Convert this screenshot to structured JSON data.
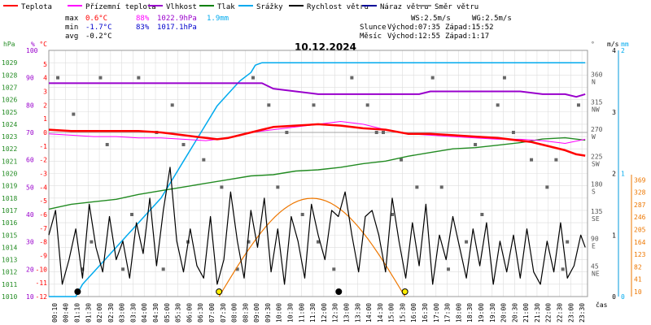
{
  "legend": [
    {
      "label": "Teplota",
      "color": "#ff0000"
    },
    {
      "label": "Přízemní teplota",
      "color": "#ff00ff"
    },
    {
      "label": "Vlhkost",
      "color": "#9900cc"
    },
    {
      "label": "Tlak",
      "color": "#008000"
    },
    {
      "label": "Srážky",
      "color": "#00aaee"
    },
    {
      "label": "Rychlost větru",
      "color": "#000000"
    },
    {
      "label": "Náraz větru",
      "color": "#000099"
    },
    {
      "label": "Směr větru",
      "color": "#888888"
    }
  ],
  "stats": {
    "max": {
      "label": "max",
      "temp": "0.6°C",
      "hum": "88%",
      "press": "1022.9hPa",
      "rain": "1.9mm"
    },
    "min": {
      "label": "min",
      "temp": "-1.7°C",
      "hum": "83%",
      "press": "1017.1hPa"
    },
    "avg": {
      "label": "avg",
      "temp": "-0.2°C"
    }
  },
  "wind_info": {
    "ws": "WS:2.5m/s",
    "wg": "WG:2.5m/s"
  },
  "sun": {
    "label": "Slunce",
    "rise": "Východ:07:35",
    "set": "Západ:15:52"
  },
  "moon": {
    "label": "Měsíc",
    "rise": "Východ:12:55",
    "set": "Západ:1:17"
  },
  "title": "10.12.2024",
  "unit_labels": {
    "hpa": "hPa",
    "pct": "%",
    "degc": "°C",
    "deg": "°",
    "ms": "m/s",
    "mm": "mm",
    "time": "čas"
  },
  "colors": {
    "temp": "#ff0000",
    "ground_temp": "#ff00ff",
    "humidity": "#9900cc",
    "pressure": "#228b22",
    "rain": "#00aaee",
    "wind": "#000000",
    "gust": "#000099",
    "winddir": "#666666",
    "sun": "#ee7700",
    "grid": "#dddddd"
  },
  "chart_data": {
    "type": "line",
    "title": "10.12.2024",
    "x_ticks": [
      "00:10",
      "00:40",
      "01:10",
      "01:30",
      "02:00",
      "02:30",
      "03:00",
      "03:30",
      "04:00",
      "04:30",
      "05:00",
      "05:30",
      "06:00",
      "06:30",
      "07:00",
      "07:30",
      "08:00",
      "08:30",
      "09:00",
      "09:30",
      "10:00",
      "10:30",
      "11:00",
      "11:30",
      "12:00",
      "12:30",
      "13:00",
      "13:30",
      "14:00",
      "14:30",
      "15:00",
      "15:30",
      "16:00",
      "16:30",
      "17:00",
      "17:30",
      "18:00",
      "18:30",
      "19:00",
      "19:30",
      "20:00",
      "20:30",
      "21:00",
      "21:30",
      "22:00",
      "22:30",
      "23:00",
      "23:30"
    ],
    "axes": {
      "pressure_hpa": {
        "range": [
          1010,
          1030
        ],
        "ticks": [
          "1010",
          "1011",
          "1012",
          "1013",
          "1014",
          "1015",
          "1016",
          "1017",
          "1018",
          "1019",
          "1020",
          "1021",
          "1022",
          "1023",
          "1024",
          "1025",
          "1026",
          "1027",
          "1028",
          "1029"
        ]
      },
      "humidity_pct": {
        "range": [
          10,
          100
        ],
        "ticks": [
          "10",
          "20",
          "30",
          "40",
          "50",
          "60",
          "70",
          "80",
          "90",
          "100"
        ]
      },
      "temperature_c": {
        "range": [
          -12,
          6
        ],
        "ticks": [
          "-12",
          "-11",
          "-10",
          "-9",
          "-8",
          "-7",
          "-6",
          "-5",
          "-4",
          "-3",
          "-2",
          "-1",
          "0",
          "1",
          "2",
          "3",
          "4",
          "5"
        ]
      },
      "wind_dir_deg": {
        "ticks": [
          {
            "deg": "360",
            "dir": "N"
          },
          {
            "deg": "315",
            "dir": "NW"
          },
          {
            "deg": "270",
            "dir": "W"
          },
          {
            "deg": "225",
            "dir": "SW"
          },
          {
            "deg": "180",
            "dir": "S"
          },
          {
            "deg": "135",
            "dir": "SE"
          },
          {
            "deg": "90",
            "dir": "E"
          },
          {
            "deg": "45",
            "dir": "NE"
          }
        ]
      },
      "wind_ms": {
        "range": [
          0,
          4
        ],
        "ticks": [
          "0",
          "1",
          "2",
          "3",
          "4"
        ]
      },
      "rain_mm": {
        "range": [
          0,
          2
        ],
        "ticks": [
          "0",
          "1",
          "2"
        ]
      },
      "sun_elev": {
        "ticks": [
          "10",
          "41",
          "82",
          "123",
          "164",
          "205",
          "246",
          "287",
          "328",
          "369"
        ]
      }
    },
    "series": [
      {
        "name": "Teplota",
        "unit": "°C",
        "axis": "temperature_c",
        "x": [
          0,
          1,
          2,
          3,
          4,
          5,
          6,
          6.5,
          7,
          7.5,
          8,
          8.5,
          9,
          9.5,
          10,
          11,
          12,
          13,
          13.5,
          14,
          15,
          16,
          17,
          18,
          19,
          20,
          21,
          21.5,
          22,
          22.5,
          23,
          23.5,
          23.9
        ],
        "y": [
          0.2,
          0.1,
          0.1,
          0.1,
          0.1,
          0,
          -0.2,
          -0.3,
          -0.4,
          -0.5,
          -0.4,
          -0.2,
          0,
          0.2,
          0.4,
          0.5,
          0.6,
          0.5,
          0.4,
          0.3,
          0.2,
          -0.1,
          -0.1,
          -0.2,
          -0.3,
          -0.4,
          -0.6,
          -0.7,
          -0.9,
          -1.1,
          -1.3,
          -1.6,
          -1.7
        ]
      },
      {
        "name": "Přízemní teplota",
        "unit": "°C",
        "axis": "temperature_c",
        "x": [
          0,
          1,
          2,
          3,
          4,
          5,
          6,
          7,
          8,
          9,
          10,
          11,
          12,
          13,
          14,
          15,
          16,
          17,
          18,
          19,
          20,
          21,
          22,
          23,
          23.9
        ],
        "y": [
          -0.1,
          -0.2,
          -0.3,
          -0.3,
          -0.4,
          -0.4,
          -0.5,
          -0.6,
          -0.4,
          0,
          0.2,
          0.4,
          0.6,
          0.8,
          0.6,
          0.2,
          -0.1,
          -0.2,
          -0.3,
          -0.4,
          -0.5,
          -0.5,
          -0.6,
          -0.8,
          -0.5
        ]
      },
      {
        "name": "Vlhkost",
        "unit": "%",
        "axis": "humidity_pct",
        "x": [
          0,
          5,
          9.5,
          10,
          11,
          12,
          13,
          16.5,
          17,
          18,
          20,
          21,
          22,
          23,
          23.5,
          23.9
        ],
        "y": [
          88,
          88,
          88,
          86,
          85,
          84,
          84,
          84,
          85,
          85,
          85,
          85,
          84,
          84,
          83,
          84
        ]
      },
      {
        "name": "Tlak",
        "unit": "hPa",
        "axis": "pressure_hpa",
        "x": [
          0,
          1,
          2,
          3,
          4,
          5,
          6,
          7,
          8,
          9,
          10,
          11,
          12,
          13,
          14,
          15,
          16,
          17,
          18,
          19,
          20,
          21,
          22,
          23,
          23.9
        ],
        "y": [
          1017.1,
          1017.5,
          1017.7,
          1017.9,
          1018.3,
          1018.6,
          1018.9,
          1019.2,
          1019.5,
          1019.8,
          1019.9,
          1020.2,
          1020.3,
          1020.5,
          1020.8,
          1021.0,
          1021.4,
          1021.7,
          1022.0,
          1022.1,
          1022.3,
          1022.5,
          1022.8,
          1022.9,
          1022.7
        ]
      },
      {
        "name": "Srážky",
        "unit": "mm",
        "axis": "rain_mm",
        "x": [
          0,
          1.2,
          1.5,
          2,
          2.5,
          3,
          3.5,
          4,
          4.5,
          5,
          5.5,
          6,
          6.5,
          7,
          7.5,
          8,
          8.5,
          9,
          9.2,
          9.5,
          23.9
        ],
        "y": [
          0,
          0,
          0.1,
          0.2,
          0.3,
          0.4,
          0.5,
          0.6,
          0.7,
          0.8,
          0.95,
          1.1,
          1.25,
          1.4,
          1.55,
          1.65,
          1.75,
          1.82,
          1.88,
          1.9,
          1.9
        ]
      },
      {
        "name": "Rychlost větru",
        "unit": "m/s",
        "axis": "wind_ms",
        "x": [
          0,
          0.3,
          0.6,
          0.9,
          1.2,
          1.5,
          1.8,
          2.1,
          2.4,
          2.7,
          3,
          3.3,
          3.6,
          3.9,
          4.2,
          4.5,
          4.8,
          5.1,
          5.4,
          5.7,
          6,
          6.3,
          6.6,
          6.9,
          7.2,
          7.5,
          7.8,
          8.1,
          8.4,
          8.7,
          9,
          9.3,
          9.6,
          9.9,
          10.2,
          10.5,
          10.8,
          11.1,
          11.4,
          11.7,
          12,
          12.3,
          12.6,
          12.9,
          13.2,
          13.5,
          13.8,
          14.1,
          14.4,
          14.7,
          15,
          15.3,
          15.6,
          15.9,
          16.2,
          16.5,
          16.8,
          17.1,
          17.4,
          17.7,
          18,
          18.3,
          18.6,
          18.9,
          19.2,
          19.5,
          19.8,
          20.1,
          20.4,
          20.7,
          21,
          21.3,
          21.6,
          21.9,
          22.2,
          22.5,
          22.8,
          23.1,
          23.4,
          23.7,
          23.9
        ],
        "y": [
          1.0,
          1.4,
          0.2,
          0.6,
          1.1,
          0.3,
          1.5,
          0.8,
          0.4,
          1.3,
          0.6,
          0.9,
          0.3,
          1.2,
          0.7,
          1.6,
          0.5,
          1.4,
          2.1,
          0.9,
          0.4,
          1.1,
          0.5,
          0.3,
          1.3,
          0.2,
          0.6,
          1.7,
          0.9,
          0.3,
          1.4,
          0.8,
          1.6,
          0.4,
          1.1,
          0.2,
          1.3,
          0.9,
          0.3,
          1.5,
          1.0,
          0.6,
          1.4,
          1.3,
          1.7,
          1.0,
          0.4,
          1.3,
          1.4,
          1.0,
          0.4,
          1.6,
          0.9,
          0.3,
          1.2,
          0.5,
          1.5,
          0.2,
          1.0,
          0.6,
          1.3,
          0.8,
          0.3,
          1.1,
          0.5,
          1.2,
          0.2,
          0.9,
          0.4,
          1.0,
          0.3,
          1.1,
          0.4,
          0.2,
          0.9,
          0.4,
          1.2,
          0.3,
          0.5,
          1.0,
          0.8
        ]
      },
      {
        "name": "Směr větru",
        "unit": "°",
        "axis": "wind_dir_deg",
        "x": [
          0.4,
          1.1,
          1.9,
          2.6,
          3.3,
          4.0,
          4.8,
          5.5,
          6.2,
          6.9,
          7.7,
          8.4,
          9.1,
          9.8,
          10.6,
          11.3,
          12.0,
          12.7,
          13.5,
          14.2,
          14.9,
          15.7,
          16.4,
          17.1,
          17.8,
          18.6,
          19.3,
          20.0,
          20.7,
          21.5,
          22.2,
          22.9,
          23.6,
          1.5,
          3.7,
          6.0,
          8.9,
          11.8,
          14.6,
          17.5,
          20.3,
          23.1,
          2.3,
          5.1,
          10.2,
          15.3,
          19.0,
          22.6
        ],
        "y": [
          360,
          300,
          90,
          250,
          45,
          360,
          270,
          315,
          90,
          225,
          180,
          45,
          360,
          315,
          270,
          135,
          90,
          45,
          360,
          315,
          270,
          225,
          180,
          360,
          45,
          90,
          135,
          315,
          270,
          225,
          180,
          45,
          315,
          45,
          135,
          250,
          90,
          315,
          270,
          180,
          360,
          90,
          360,
          45,
          180,
          135,
          250,
          225
        ]
      }
    ],
    "markers": {
      "sunrise": "07:35",
      "sunset": "15:52",
      "moonrise": "12:55",
      "moonset": "01:17"
    }
  }
}
